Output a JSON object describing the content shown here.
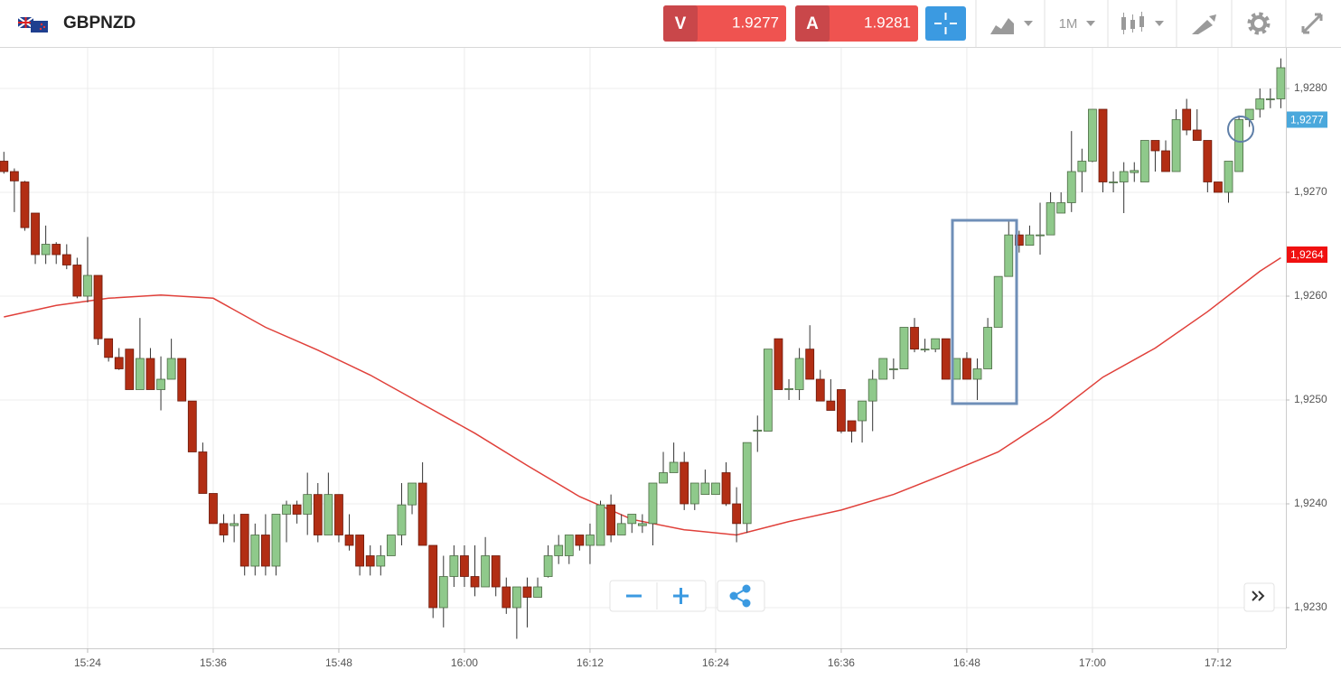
{
  "header": {
    "symbol": "GBPNZD",
    "sell": {
      "label": "V",
      "price": 1.9277
    },
    "buy": {
      "label": "A",
      "price": 1.9281
    },
    "timeframe": "1M"
  },
  "chart_data": {
    "type": "candlestick",
    "x": [
      "15:16",
      "15:17",
      "15:18",
      "15:19",
      "15:20",
      "15:21",
      "15:22",
      "15:23",
      "15:24",
      "15:25",
      "15:26",
      "15:27",
      "15:28",
      "15:29",
      "15:30",
      "15:31",
      "15:32",
      "15:33",
      "15:34",
      "15:35",
      "15:36",
      "15:37",
      "15:38",
      "15:39",
      "15:40",
      "15:41",
      "15:42",
      "15:43",
      "15:44",
      "15:45",
      "15:46",
      "15:47",
      "15:48",
      "15:49",
      "15:50",
      "15:51",
      "15:52",
      "15:53",
      "15:54",
      "15:55",
      "15:56",
      "15:57",
      "15:58",
      "15:59",
      "16:00",
      "16:01",
      "16:02",
      "16:03",
      "16:04",
      "16:05",
      "16:06",
      "16:07",
      "16:08",
      "16:09",
      "16:10",
      "16:11",
      "16:12",
      "16:13",
      "16:14",
      "16:15",
      "16:16",
      "16:17",
      "16:18",
      "16:19",
      "16:20",
      "16:21",
      "16:22",
      "16:23",
      "16:24",
      "16:25",
      "16:26",
      "16:27",
      "16:28",
      "16:29",
      "16:30",
      "16:31",
      "16:32",
      "16:33",
      "16:34",
      "16:35",
      "16:36",
      "16:37",
      "16:38",
      "16:39",
      "16:40",
      "16:41",
      "16:42",
      "16:43",
      "16:44",
      "16:45",
      "16:46",
      "16:47",
      "16:48",
      "16:49",
      "16:50",
      "16:51",
      "16:52",
      "16:53",
      "16:54",
      "16:55",
      "16:56",
      "16:57",
      "16:58",
      "16:59",
      "17:00",
      "17:01",
      "17:02",
      "17:03",
      "17:04",
      "17:05",
      "17:06",
      "17:07",
      "17:08",
      "17:09",
      "17:10",
      "17:11",
      "17:12",
      "17:13",
      "17:14",
      "17:15",
      "17:16",
      "17:17",
      "17:18"
    ],
    "open": [
      1.9273,
      1.9272,
      1.9271,
      1.9268,
      1.9264,
      1.9265,
      1.9264,
      1.9263,
      1.926,
      1.9262,
      1.92559,
      1.92541,
      1.92549,
      1.9251,
      1.9254,
      1.9251,
      1.9252,
      1.9254,
      1.92499,
      1.9245,
      1.9241,
      1.92381,
      1.92379,
      1.9239,
      1.9234,
      1.9237,
      1.9234,
      1.9239,
      1.92399,
      1.9239,
      1.92409,
      1.9237,
      1.92409,
      1.9237,
      1.9237,
      1.9235,
      1.9234,
      1.9235,
      1.9237,
      1.92399,
      1.9242,
      1.9236,
      1.923,
      1.9233,
      1.9235,
      1.9233,
      1.9232,
      1.9235,
      1.9232,
      1.923,
      1.9232,
      1.9231,
      1.9233,
      1.9235,
      1.9235,
      1.9237,
      1.9236,
      1.9236,
      1.92399,
      1.9237,
      1.92381,
      1.92379,
      1.92381,
      1.9242,
      1.9243,
      1.9244,
      1.924,
      1.92409,
      1.92409,
      1.9243,
      1.924,
      1.92381,
      1.9247,
      1.9247,
      1.92559,
      1.9251,
      1.9251,
      1.92549,
      1.9252,
      1.92499,
      1.9251,
      1.9248,
      1.9248,
      1.92499,
      1.9252,
      1.9253,
      1.9253,
      1.9257,
      1.92549,
      1.92549,
      1.92559,
      1.9252,
      1.9254,
      1.9252,
      1.9253,
      1.9257,
      1.92619,
      1.92659,
      1.92649,
      1.92659,
      1.92659,
      1.9268,
      1.9269,
      1.9272,
      1.9273,
      1.9278,
      1.9271,
      1.9271,
      1.92719,
      1.9271,
      1.9275,
      1.9274,
      1.9272,
      1.9278,
      1.9276,
      1.9275,
      1.9271,
      1.927,
      1.9272,
      1.9277,
      1.9278,
      1.9279,
      1.9279
    ],
    "high": [
      1.92739,
      1.92723,
      1.92711,
      1.9268,
      1.92668,
      1.92652,
      1.9265,
      1.92637,
      1.92657,
      1.9262,
      1.92559,
      1.9255,
      1.92549,
      1.92579,
      1.9255,
      1.92542,
      1.92559,
      1.9254,
      1.92499,
      1.92459,
      1.9241,
      1.9239,
      1.9239,
      1.9239,
      1.92381,
      1.9239,
      1.9239,
      1.92403,
      1.92403,
      1.9243,
      1.9242,
      1.9243,
      1.92409,
      1.9239,
      1.9237,
      1.9236,
      1.9236,
      1.9237,
      1.9242,
      1.9242,
      1.9244,
      1.9236,
      1.9235,
      1.9236,
      1.9236,
      1.9236,
      1.92368,
      1.9235,
      1.92329,
      1.9232,
      1.92329,
      1.92329,
      1.9236,
      1.9237,
      1.9237,
      1.9237,
      1.92381,
      1.92403,
      1.92409,
      1.9239,
      1.9239,
      1.9239,
      1.9242,
      1.9245,
      1.92459,
      1.9245,
      1.9242,
      1.92433,
      1.9242,
      1.9244,
      1.92416,
      1.92459,
      1.92485,
      1.92549,
      1.92559,
      1.9252,
      1.9255,
      1.92572,
      1.92529,
      1.9252,
      1.9251,
      1.9248,
      1.92499,
      1.92529,
      1.9254,
      1.9254,
      1.9257,
      1.92579,
      1.92559,
      1.92559,
      1.92559,
      1.9254,
      1.92546,
      1.9254,
      1.92579,
      1.92619,
      1.92672,
      1.92663,
      1.92668,
      1.9269,
      1.927,
      1.927,
      1.92759,
      1.92742,
      1.9278,
      1.9278,
      1.9272,
      1.92729,
      1.92729,
      1.9275,
      1.9275,
      1.9275,
      1.9278,
      1.9279,
      1.9278,
      1.9275,
      1.9271,
      1.9273,
      1.92774,
      1.9278,
      1.928,
      1.928,
      1.92829
    ],
    "low": [
      1.92718,
      1.92681,
      1.92663,
      1.92631,
      1.92631,
      1.92631,
      1.92626,
      1.92598,
      1.92594,
      1.92553,
      1.92537,
      1.92529,
      1.9251,
      1.9251,
      1.9251,
      1.9249,
      1.9252,
      1.92499,
      1.9245,
      1.9241,
      1.92381,
      1.92363,
      1.92363,
      1.92331,
      1.92331,
      1.92331,
      1.92331,
      1.92363,
      1.92381,
      1.9237,
      1.92363,
      1.9237,
      1.92363,
      1.92355,
      1.92331,
      1.92331,
      1.92331,
      1.9235,
      1.9236,
      1.9239,
      1.9236,
      1.9229,
      1.92281,
      1.9232,
      1.9232,
      1.92311,
      1.9232,
      1.92311,
      1.92294,
      1.9227,
      1.92281,
      1.9231,
      1.92329,
      1.92342,
      1.92342,
      1.92355,
      1.92342,
      1.9236,
      1.92363,
      1.9237,
      1.92372,
      1.92372,
      1.9236,
      1.9242,
      1.9243,
      1.92394,
      1.92394,
      1.92409,
      1.92409,
      1.92398,
      1.92363,
      1.92372,
      1.9245,
      1.9247,
      1.9251,
      1.925,
      1.925,
      1.9252,
      1.92499,
      1.9249,
      1.92468,
      1.92459,
      1.92459,
      1.9247,
      1.9252,
      1.9252,
      1.9253,
      1.92546,
      1.92546,
      1.92546,
      1.9252,
      1.9252,
      1.9252,
      1.925,
      1.9253,
      1.9257,
      1.92619,
      1.92642,
      1.92649,
      1.9264,
      1.92659,
      1.9268,
      1.92681,
      1.927,
      1.92729,
      1.927,
      1.927,
      1.9268,
      1.9271,
      1.9271,
      1.9272,
      1.9272,
      1.9272,
      1.92755,
      1.9275,
      1.927,
      1.927,
      1.9269,
      1.9272,
      1.92763,
      1.92772,
      1.92781,
      1.92781
    ],
    "close": [
      1.9272,
      1.92711,
      1.92666,
      1.9264,
      1.9265,
      1.9264,
      1.9263,
      1.926,
      1.9262,
      1.92559,
      1.92541,
      1.9253,
      1.9251,
      1.9254,
      1.9251,
      1.9252,
      1.9254,
      1.92499,
      1.9245,
      1.9241,
      1.92381,
      1.9237,
      1.92381,
      1.9234,
      1.9237,
      1.9234,
      1.9239,
      1.92399,
      1.9239,
      1.92409,
      1.9237,
      1.92409,
      1.9237,
      1.9236,
      1.9234,
      1.9234,
      1.9235,
      1.9237,
      1.92399,
      1.9242,
      1.9236,
      1.923,
      1.9233,
      1.9235,
      1.9233,
      1.9232,
      1.9235,
      1.9232,
      1.923,
      1.9232,
      1.9231,
      1.9232,
      1.9235,
      1.9236,
      1.9237,
      1.9236,
      1.9237,
      1.92399,
      1.9237,
      1.92381,
      1.9239,
      1.92381,
      1.9242,
      1.9243,
      1.9244,
      1.924,
      1.9242,
      1.9242,
      1.9242,
      1.924,
      1.92381,
      1.92459,
      1.92471,
      1.92549,
      1.9251,
      1.92511,
      1.9254,
      1.9252,
      1.92499,
      1.9249,
      1.9247,
      1.9247,
      1.92499,
      1.9252,
      1.9254,
      1.9253,
      1.9257,
      1.92549,
      1.92549,
      1.92559,
      1.9252,
      1.9254,
      1.9252,
      1.9253,
      1.9257,
      1.92619,
      1.92659,
      1.92649,
      1.92659,
      1.92659,
      1.9269,
      1.9269,
      1.9272,
      1.9273,
      1.9278,
      1.9271,
      1.9271,
      1.9272,
      1.92721,
      1.9275,
      1.9274,
      1.9272,
      1.9277,
      1.9276,
      1.9275,
      1.9271,
      1.927,
      1.9273,
      1.9277,
      1.9278,
      1.9279,
      1.9279,
      1.9282
    ],
    "up_color": "#8fc98b",
    "down_color": "#b22e14",
    "ma": {
      "x": [
        "15:16",
        "15:21",
        "15:26",
        "15:31",
        "15:36",
        "15:41",
        "15:46",
        "15:51",
        "15:56",
        "16:01",
        "16:06",
        "16:11",
        "16:16",
        "16:21",
        "16:26",
        "16:31",
        "16:36",
        "16:41",
        "16:46",
        "16:51",
        "16:56",
        "17:01",
        "17:06",
        "17:11",
        "17:16",
        "17:18"
      ],
      "values": [
        1.9258,
        1.92591,
        1.92598,
        1.92601,
        1.92598,
        1.9257,
        1.92548,
        1.92524,
        1.92496,
        1.92468,
        1.92437,
        1.92407,
        1.92385,
        1.92375,
        1.9237,
        1.92383,
        1.92394,
        1.92409,
        1.92429,
        1.9245,
        1.92483,
        1.92522,
        1.9255,
        1.92585,
        1.92624,
        1.92637
      ],
      "color": "#e0403a"
    },
    "ylim": [
      1.9226,
      1.9284
    ],
    "yticks": [
      {
        "value": 1.923,
        "label": "1,9230"
      },
      {
        "value": 1.924,
        "label": "1,9240"
      },
      {
        "value": 1.925,
        "label": "1,9250"
      },
      {
        "value": 1.926,
        "label": "1,9260"
      },
      {
        "value": 1.927,
        "label": "1,9270"
      },
      {
        "value": 1.928,
        "label": "1,9280"
      }
    ],
    "xticks": [
      "15:24",
      "15:36",
      "15:48",
      "16:00",
      "16:12",
      "16:24",
      "16:36",
      "16:48",
      "17:00",
      "17:12"
    ],
    "price_tags": [
      {
        "value": 1.9277,
        "label": "1,9277",
        "color": "#4aa8dc"
      },
      {
        "value": 1.9264,
        "label": "1,9264",
        "color": "#f01010"
      }
    ],
    "grid": true
  }
}
